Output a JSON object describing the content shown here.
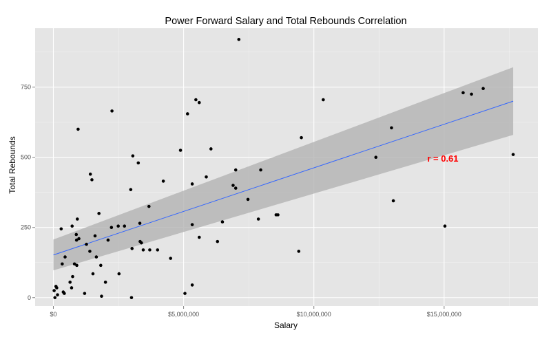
{
  "chart_data": {
    "type": "scatter",
    "title": "Power Forward Salary and Total Rebounds Correlation",
    "xlabel": "Salary",
    "ylabel": "Total Rebounds",
    "xlim": [
      -700000,
      18600000
    ],
    "ylim": [
      -30,
      960
    ],
    "x_ticks": [
      0,
      5000000,
      10000000,
      15000000
    ],
    "x_tick_labels": [
      "$0",
      "$5,000,000",
      "$10,000,000",
      "$15,000,000"
    ],
    "y_ticks": [
      0,
      250,
      500,
      750
    ],
    "y_tick_labels": [
      "0",
      "250",
      "500",
      "750"
    ],
    "grid": true,
    "annotation": {
      "text": "r = 0.61",
      "x": 14950000,
      "y": 497
    },
    "colors": {
      "panel": "#e5e5e5",
      "grid_major": "#ffffff",
      "grid_minor": "#f2f2f2",
      "points": "#000000",
      "trend_line": "#3366ff",
      "confidence_band": "#b3b3b3",
      "annotation": "#ff0000"
    },
    "trend_line": {
      "x": [
        0,
        17650000
      ],
      "y": [
        152,
        700
      ],
      "band_lower": [
        97,
        580
      ],
      "band_upper": [
        207,
        821
      ]
    },
    "points": [
      [
        30000,
        25
      ],
      [
        60000,
        0
      ],
      [
        100000,
        40
      ],
      [
        160000,
        10
      ],
      [
        130000,
        35
      ],
      [
        300000,
        245
      ],
      [
        340000,
        120
      ],
      [
        380000,
        20
      ],
      [
        420000,
        15
      ],
      [
        450000,
        145
      ],
      [
        640000,
        55
      ],
      [
        720000,
        255
      ],
      [
        700000,
        35
      ],
      [
        740000,
        75
      ],
      [
        810000,
        120
      ],
      [
        880000,
        225
      ],
      [
        890000,
        205
      ],
      [
        900000,
        115
      ],
      [
        920000,
        280
      ],
      [
        980000,
        210
      ],
      [
        950000,
        600
      ],
      [
        1200000,
        15
      ],
      [
        1270000,
        190
      ],
      [
        1400000,
        165
      ],
      [
        1420000,
        440
      ],
      [
        1480000,
        420
      ],
      [
        1520000,
        85
      ],
      [
        1600000,
        220
      ],
      [
        1650000,
        145
      ],
      [
        1750000,
        300
      ],
      [
        1820000,
        115
      ],
      [
        1850000,
        5
      ],
      [
        2000000,
        55
      ],
      [
        2100000,
        205
      ],
      [
        2250000,
        665
      ],
      [
        2230000,
        250
      ],
      [
        2490000,
        255
      ],
      [
        2520000,
        85
      ],
      [
        2730000,
        255
      ],
      [
        2970000,
        385
      ],
      [
        3020000,
        175
      ],
      [
        3000000,
        0
      ],
      [
        3050000,
        505
      ],
      [
        3260000,
        480
      ],
      [
        3320000,
        265
      ],
      [
        3330000,
        200
      ],
      [
        3380000,
        195
      ],
      [
        3450000,
        170
      ],
      [
        3670000,
        325
      ],
      [
        3700000,
        170
      ],
      [
        4000000,
        170
      ],
      [
        4220000,
        415
      ],
      [
        4500000,
        140
      ],
      [
        4880000,
        525
      ],
      [
        5050000,
        15
      ],
      [
        5150000,
        655
      ],
      [
        5330000,
        45
      ],
      [
        5330000,
        405
      ],
      [
        5330000,
        260
      ],
      [
        5470000,
        705
      ],
      [
        5600000,
        215
      ],
      [
        5600000,
        695
      ],
      [
        5870000,
        430
      ],
      [
        6050000,
        530
      ],
      [
        6300000,
        200
      ],
      [
        6490000,
        270
      ],
      [
        6900000,
        400
      ],
      [
        7000000,
        455
      ],
      [
        7000000,
        390
      ],
      [
        7120000,
        920
      ],
      [
        7470000,
        350
      ],
      [
        7870000,
        280
      ],
      [
        7960000,
        455
      ],
      [
        8550000,
        295
      ],
      [
        8620000,
        295
      ],
      [
        9420000,
        165
      ],
      [
        9520000,
        570
      ],
      [
        10360000,
        705
      ],
      [
        12380000,
        500
      ],
      [
        12980000,
        605
      ],
      [
        13050000,
        345
      ],
      [
        15030000,
        255
      ],
      [
        15730000,
        730
      ],
      [
        16050000,
        725
      ],
      [
        16500000,
        745
      ],
      [
        17650000,
        510
      ]
    ]
  }
}
